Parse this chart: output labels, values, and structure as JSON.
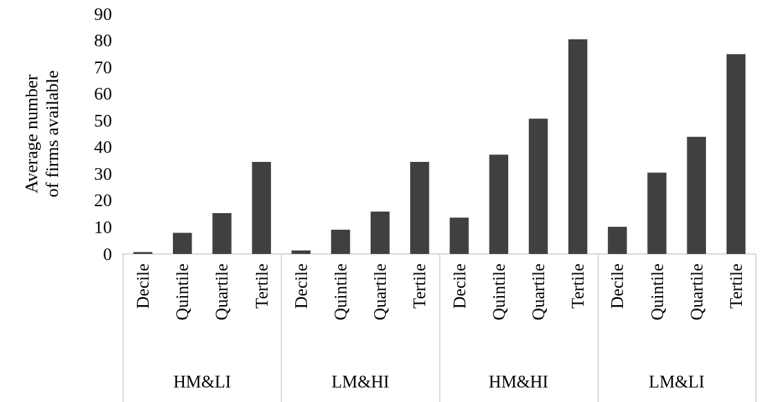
{
  "chart_data": {
    "type": "bar",
    "ylabel": "Average number\nof firms available",
    "categories": [
      "Decile",
      "Quintile",
      "Quartile",
      "Tertile",
      "Decile",
      "Quintile",
      "Quartile",
      "Tertile",
      "Decile",
      "Quintile",
      "Quartile",
      "Tertile",
      "Decile",
      "Quintile",
      "Quartile",
      "Tertile"
    ],
    "values": [
      0.7,
      7.9,
      15.3,
      34.5,
      1.3,
      9.1,
      15.9,
      34.5,
      13.6,
      37.2,
      50.7,
      80.5,
      10.2,
      30.5,
      43.9,
      74.9
    ],
    "color": "#404040",
    "annotations": [
      "HM&LI",
      "LM&HI",
      "HM&HI",
      "LM&LI"
    ],
    "ylim": [
      0,
      90
    ],
    "yticks": [
      0,
      10,
      20,
      30,
      40,
      50,
      60,
      70,
      80,
      90
    ],
    "grid": false
  }
}
